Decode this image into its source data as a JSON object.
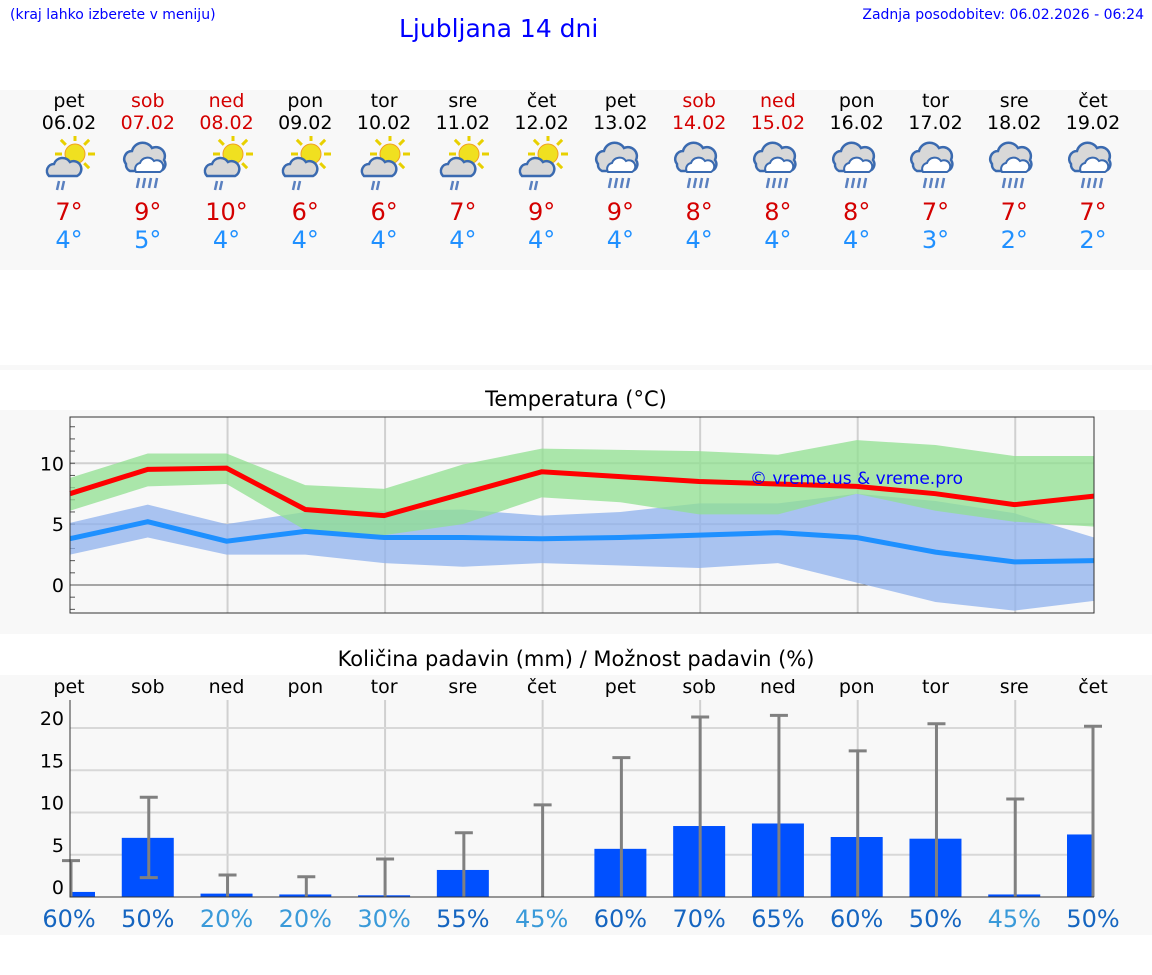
{
  "header": {
    "left": "(kraj lahko izberete v meniju)",
    "title": "Ljubljana 14 dni",
    "right": "Zadnja posodobitev: 06.02.2026 - 06:24"
  },
  "days": [
    {
      "name": "pet",
      "date": "06.02",
      "weekend": false,
      "icon": "sun-cloud-rain-icon",
      "max": "7°",
      "min": "4°"
    },
    {
      "name": "sob",
      "date": "07.02",
      "weekend": true,
      "icon": "cloud-rain-icon",
      "max": "9°",
      "min": "5°"
    },
    {
      "name": "ned",
      "date": "08.02",
      "weekend": true,
      "icon": "sun-cloud-rain-icon",
      "max": "10°",
      "min": "4°"
    },
    {
      "name": "pon",
      "date": "09.02",
      "weekend": false,
      "icon": "sun-cloud-rain-icon",
      "max": "6°",
      "min": "4°"
    },
    {
      "name": "tor",
      "date": "10.02",
      "weekend": false,
      "icon": "sun-cloud-rain-icon",
      "max": "6°",
      "min": "4°"
    },
    {
      "name": "sre",
      "date": "11.02",
      "weekend": false,
      "icon": "sun-cloud-rain-icon",
      "max": "7°",
      "min": "4°"
    },
    {
      "name": "čet",
      "date": "12.02",
      "weekend": false,
      "icon": "sun-cloud-rain-icon",
      "max": "9°",
      "min": "4°"
    },
    {
      "name": "pet",
      "date": "13.02",
      "weekend": false,
      "icon": "cloud-rain-icon",
      "max": "9°",
      "min": "4°"
    },
    {
      "name": "sob",
      "date": "14.02",
      "weekend": true,
      "icon": "cloud-rain-icon",
      "max": "8°",
      "min": "4°"
    },
    {
      "name": "ned",
      "date": "15.02",
      "weekend": true,
      "icon": "cloud-rain-icon",
      "max": "8°",
      "min": "4°"
    },
    {
      "name": "pon",
      "date": "16.02",
      "weekend": false,
      "icon": "cloud-rain-icon",
      "max": "8°",
      "min": "4°"
    },
    {
      "name": "tor",
      "date": "17.02",
      "weekend": false,
      "icon": "cloud-rain-icon",
      "max": "7°",
      "min": "3°"
    },
    {
      "name": "sre",
      "date": "18.02",
      "weekend": false,
      "icon": "cloud-rain-icon",
      "max": "7°",
      "min": "2°"
    },
    {
      "name": "čet",
      "date": "19.02",
      "weekend": false,
      "icon": "cloud-rain-icon",
      "max": "7°",
      "min": "2°"
    }
  ],
  "chart_data": [
    {
      "type": "line",
      "title": "Temperatura (°C)",
      "ylim": [
        -2.3,
        13.8
      ],
      "yticks": [
        "10",
        "5",
        "0"
      ],
      "watermark": "© vreme.us & vreme.pro",
      "colors": {
        "max": "#ff0000",
        "min": "#1e90ff",
        "max_band": "#90e090",
        "min_band": "#8fb2ee"
      },
      "series": [
        {
          "name": "max",
          "values": [
            7.5,
            9.5,
            9.6,
            6.2,
            5.7,
            7.5,
            9.3,
            8.9,
            8.5,
            8.3,
            8.1,
            7.5,
            6.6,
            7.3
          ]
        },
        {
          "name": "max_high",
          "values": [
            8.8,
            10.8,
            10.8,
            8.2,
            7.9,
            9.9,
            11.2,
            11.1,
            11.0,
            10.7,
            11.9,
            11.5,
            10.6,
            10.6
          ]
        },
        {
          "name": "max_low",
          "values": [
            6.1,
            8.1,
            8.3,
            4.5,
            4.1,
            5.0,
            7.2,
            6.8,
            5.8,
            5.8,
            7.5,
            6.1,
            5.2,
            4.8
          ]
        },
        {
          "name": "min",
          "values": [
            3.8,
            5.2,
            3.6,
            4.4,
            3.9,
            3.9,
            3.8,
            3.9,
            4.1,
            4.3,
            3.9,
            2.7,
            1.9,
            2.0
          ]
        },
        {
          "name": "min_high",
          "values": [
            5.1,
            6.6,
            5.0,
            6.0,
            6.1,
            6.2,
            5.7,
            6.0,
            6.7,
            6.7,
            7.5,
            6.9,
            5.9,
            3.9
          ]
        },
        {
          "name": "min_low",
          "values": [
            2.5,
            3.9,
            2.5,
            2.5,
            1.8,
            1.5,
            1.8,
            1.6,
            1.4,
            1.8,
            0.2,
            -1.4,
            -2.1,
            -1.3
          ]
        }
      ]
    },
    {
      "type": "bar",
      "title": "Količina padavin (mm) / Možnost padavin (%)",
      "ylim": [
        -1,
        22
      ],
      "yticks": [
        "20",
        "15",
        "10",
        "5",
        "0"
      ],
      "categories": [
        "pet",
        "sob",
        "ned",
        "pon",
        "tor",
        "sre",
        "čet",
        "pet",
        "sob",
        "ned",
        "pon",
        "tor",
        "sre",
        "čet"
      ],
      "values": [
        0.6,
        7.0,
        0.4,
        0.3,
        0.2,
        3.2,
        0,
        5.7,
        8.4,
        8.7,
        7.1,
        6.9,
        0.3,
        7.4
      ],
      "whisker_low": [
        0,
        2.3,
        0,
        0,
        0,
        0,
        0,
        0,
        0,
        0,
        0,
        0,
        0,
        0
      ],
      "whisker_high": [
        4.3,
        11.8,
        2.6,
        2.4,
        4.5,
        7.6,
        10.9,
        16.5,
        21.3,
        21.5,
        17.3,
        20.5,
        11.6,
        20.2
      ],
      "probability": [
        "60%",
        "50%",
        "20%",
        "20%",
        "30%",
        "55%",
        "45%",
        "60%",
        "70%",
        "65%",
        "60%",
        "50%",
        "45%",
        "50%"
      ],
      "probability_values": [
        60,
        50,
        20,
        20,
        30,
        55,
        45,
        60,
        70,
        65,
        60,
        50,
        45,
        50
      ],
      "colors": {
        "bar": "#0050ff",
        "whisker": "#808080",
        "prob_high": "#1565c0",
        "prob_low": "#3a9ad9"
      }
    }
  ]
}
